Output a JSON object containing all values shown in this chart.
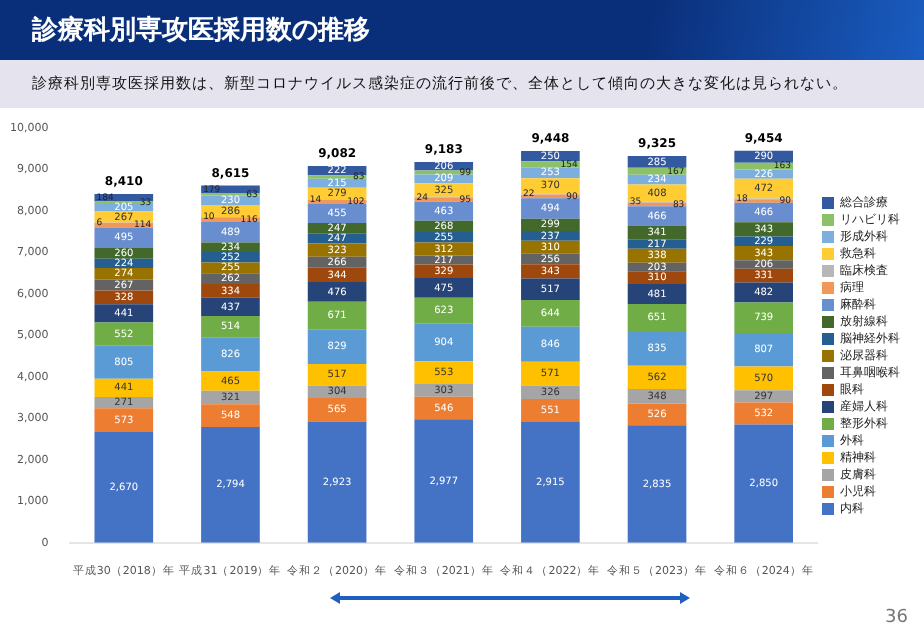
{
  "chart_data": {
    "type": "bar",
    "title": "診療科別専攻医採用数の推移",
    "subtitle": "診療科別専攻医採用数は、新型コロナウイルス感染症の流行前後で、全体として傾向の大きな変化は見られない。",
    "categories": [
      "平成30（2018）年",
      "平成31（2019）年",
      "令和２（2020）年",
      "令和３（2021）年",
      "令和４（2022）年",
      "令和５（2023）年",
      "令和６（2024）年"
    ],
    "stacked": true,
    "ylim": [
      0,
      10000
    ],
    "yticks": [
      0,
      {
        "value": 1000,
        "label": "1,000"
      },
      {
        "value": 2000,
        "label": "2,000"
      },
      {
        "value": 3000,
        "label": "3,000"
      },
      {
        "value": 4000,
        "label": "4,000"
      },
      {
        "value": 5000,
        "label": "5,000"
      },
      {
        "value": 6000,
        "label": "6,000"
      },
      {
        "value": 7000,
        "label": "7,000"
      },
      {
        "value": 8000,
        "label": "8,000"
      },
      {
        "value": 9000,
        "label": "9,000"
      },
      {
        "value": 10000,
        "label": "10,000"
      }
    ],
    "legend": "right",
    "data_labels": true,
    "totals": [
      "8,410",
      "8,615",
      "9,082",
      "9,183",
      "9,448",
      "9,325",
      "9,454"
    ],
    "annotations": [
      "36"
    ],
    "series": [
      {
        "name": "内科",
        "color": "#4472c4",
        "values": [
          2670,
          2794,
          2923,
          2977,
          2915,
          2835,
          2850
        ],
        "value_labels": [
          "2,670",
          "2,794",
          "2,923",
          "2,977",
          "2,915",
          "2,835",
          "2,850"
        ]
      },
      {
        "name": "小児科",
        "color": "#ed7d31",
        "values": [
          573,
          548,
          565,
          546,
          551,
          526,
          532
        ]
      },
      {
        "name": "皮膚科",
        "color": "#a5a5a5",
        "values": [
          271,
          321,
          304,
          303,
          326,
          348,
          297
        ]
      },
      {
        "name": "精神科",
        "color": "#ffc000",
        "values": [
          441,
          465,
          517,
          553,
          571,
          562,
          570
        ]
      },
      {
        "name": "外科",
        "color": "#5b9bd5",
        "values": [
          805,
          826,
          829,
          904,
          846,
          835,
          807
        ]
      },
      {
        "name": "整形外科",
        "color": "#70ad47",
        "values": [
          552,
          514,
          671,
          623,
          644,
          651,
          739
        ]
      },
      {
        "name": "産婦人科",
        "color": "#264478",
        "values": [
          441,
          437,
          476,
          475,
          517,
          481,
          482
        ]
      },
      {
        "name": "眼科",
        "color": "#9e480e",
        "values": [
          328,
          334,
          344,
          329,
          343,
          310,
          331
        ]
      },
      {
        "name": "耳鼻咽喉科",
        "color": "#636363",
        "values": [
          267,
          262,
          266,
          217,
          256,
          203,
          206
        ]
      },
      {
        "name": "泌尿器科",
        "color": "#997300",
        "values": [
          274,
          255,
          323,
          312,
          310,
          338,
          343
        ]
      },
      {
        "name": "脳神経外科",
        "color": "#255e91",
        "values": [
          224,
          252,
          247,
          255,
          237,
          217,
          229
        ]
      },
      {
        "name": "放射線科",
        "color": "#43682b",
        "values": [
          260,
          234,
          247,
          268,
          299,
          341,
          343
        ]
      },
      {
        "name": "麻酔科",
        "color": "#698ed0",
        "values": [
          495,
          489,
          455,
          463,
          494,
          466,
          466
        ]
      },
      {
        "name": "病理",
        "color": "#f1975a",
        "values": [
          114,
          116,
          102,
          95,
          90,
          83,
          90
        ]
      },
      {
        "name": "臨床検査",
        "color": "#b7b7b7",
        "values": [
          6,
          10,
          14,
          24,
          22,
          35,
          18
        ]
      },
      {
        "name": "救急科",
        "color": "#ffcd33",
        "values": [
          267,
          286,
          279,
          325,
          370,
          408,
          472
        ]
      },
      {
        "name": "形成外科",
        "color": "#7cafdd",
        "values": [
          205,
          230,
          215,
          209,
          253,
          234,
          226
        ]
      },
      {
        "name": "リハビリ科",
        "color": "#8cc168",
        "values": [
          33,
          63,
          83,
          99,
          154,
          167,
          163
        ]
      },
      {
        "name": "総合診療",
        "color": "#335aa1",
        "values": [
          184,
          179,
          222,
          206,
          250,
          285,
          290
        ]
      }
    ]
  }
}
